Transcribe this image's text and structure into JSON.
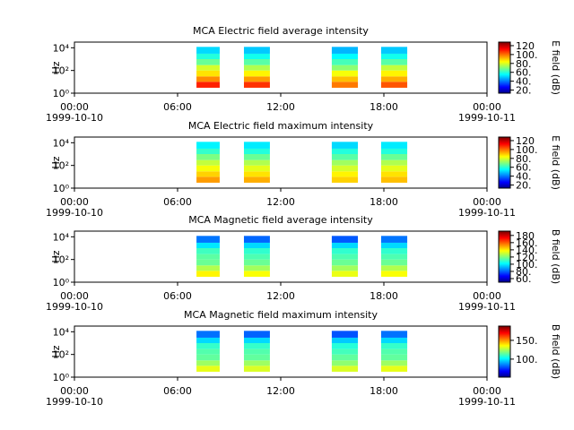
{
  "chart_data": [
    {
      "type": "spectrogram",
      "title": "MCA  Electric field average intensity",
      "ylabel": "Hz",
      "clabel": "E field (dB)",
      "colormap": "jet",
      "log_y": true,
      "ylim": [
        1,
        31623
      ],
      "yticks": [
        {
          "value": 1,
          "label": "10⁰"
        },
        {
          "value": 100,
          "label": "10²"
        },
        {
          "value": 10000,
          "label": "10⁴"
        }
      ],
      "xlim": [
        0,
        24
      ],
      "xticks": [
        {
          "value": 0,
          "label": "00:00"
        },
        {
          "value": 6,
          "label": "06:00"
        },
        {
          "value": 12,
          "label": "12:00"
        },
        {
          "value": 18,
          "label": "18:00"
        },
        {
          "value": 24,
          "label": "00:00"
        }
      ],
      "start_date": "1999-10-10",
      "end_date": "1999-10-11",
      "clim": [
        13,
        128
      ],
      "cticks": [
        {
          "value": 20,
          "label": "20."
        },
        {
          "value": 40,
          "label": "40."
        },
        {
          "value": 60,
          "label": "60."
        },
        {
          "value": 80,
          "label": "80."
        },
        {
          "value": 100,
          "label": "100."
        },
        {
          "value": 120,
          "label": "120"
        }
      ],
      "segments": [
        [
          7.1,
          8.45
        ],
        [
          9.86,
          11.37
        ],
        [
          14.97,
          16.49
        ],
        [
          17.84,
          19.36
        ]
      ],
      "freq_edges": [
        3,
        10,
        30,
        100,
        300,
        1000,
        3000,
        12000
      ],
      "values": [
        [
          110,
          98,
          88,
          80,
          68,
          60,
          52
        ],
        [
          108,
          96,
          86,
          76,
          66,
          58,
          50
        ],
        [
          100,
          92,
          84,
          72,
          64,
          56,
          48
        ],
        [
          104,
          94,
          86,
          78,
          66,
          58,
          50
        ]
      ]
    },
    {
      "type": "spectrogram",
      "title": "MCA  Electric field maximum intensity",
      "ylabel": "Hz",
      "clabel": "E field (dB)",
      "colormap": "jet",
      "log_y": true,
      "ylim": [
        1,
        31623
      ],
      "yticks": [
        {
          "value": 1,
          "label": "10⁰"
        },
        {
          "value": 100,
          "label": "10²"
        },
        {
          "value": 10000,
          "label": "10⁴"
        }
      ],
      "xlim": [
        0,
        24
      ],
      "xticks": [
        {
          "value": 0,
          "label": "00:00"
        },
        {
          "value": 6,
          "label": "06:00"
        },
        {
          "value": 12,
          "label": "12:00"
        },
        {
          "value": 18,
          "label": "18:00"
        },
        {
          "value": 24,
          "label": "00:00"
        }
      ],
      "start_date": "1999-10-10",
      "end_date": "1999-10-11",
      "clim": [
        13,
        128
      ],
      "cticks": [
        {
          "value": 20,
          "label": "20."
        },
        {
          "value": 40,
          "label": "40."
        },
        {
          "value": 60,
          "label": "60."
        },
        {
          "value": 80,
          "label": "80."
        },
        {
          "value": 100,
          "label": "100."
        },
        {
          "value": 120,
          "label": "120"
        }
      ],
      "segments": [
        [
          7.1,
          8.45
        ],
        [
          9.86,
          11.37
        ],
        [
          14.97,
          16.49
        ],
        [
          17.84,
          19.36
        ]
      ],
      "freq_edges": [
        3,
        10,
        30,
        100,
        300,
        1000,
        3000,
        12000
      ],
      "values": [
        [
          96,
          90,
          84,
          78,
          70,
          62,
          55
        ],
        [
          94,
          88,
          82,
          76,
          68,
          60,
          54
        ],
        [
          90,
          86,
          80,
          74,
          66,
          60,
          52
        ],
        [
          92,
          88,
          82,
          76,
          68,
          60,
          54
        ]
      ]
    },
    {
      "type": "spectrogram",
      "title": "MCA  Magnetic field average intensity",
      "ylabel": "Hz",
      "clabel": "B field (dB)",
      "colormap": "jet",
      "log_y": true,
      "ylim": [
        1,
        31623
      ],
      "yticks": [
        {
          "value": 1,
          "label": "10⁰"
        },
        {
          "value": 100,
          "label": "10²"
        },
        {
          "value": 10000,
          "label": "10⁴"
        }
      ],
      "xlim": [
        0,
        24
      ],
      "xticks": [
        {
          "value": 0,
          "label": "00:00"
        },
        {
          "value": 6,
          "label": "06:00"
        },
        {
          "value": 12,
          "label": "12:00"
        },
        {
          "value": 18,
          "label": "18:00"
        },
        {
          "value": 24,
          "label": "00:00"
        }
      ],
      "start_date": "1999-10-10",
      "end_date": "1999-10-11",
      "clim": [
        50,
        192
      ],
      "cticks": [
        {
          "value": 60,
          "label": "60."
        },
        {
          "value": 80,
          "label": "80."
        },
        {
          "value": 100,
          "label": "100."
        },
        {
          "value": 120,
          "label": "120."
        },
        {
          "value": 140,
          "label": "140."
        },
        {
          "value": 160,
          "label": "160."
        },
        {
          "value": 180,
          "label": "180"
        }
      ],
      "segments": [
        [
          7.1,
          8.45
        ],
        [
          9.86,
          11.37
        ],
        [
          14.97,
          16.49
        ],
        [
          17.84,
          19.36
        ]
      ],
      "freq_edges": [
        3,
        10,
        30,
        100,
        300,
        1000,
        3000,
        12000
      ],
      "values": [
        [
          140,
          128,
          118,
          116,
          112,
          100,
          84
        ],
        [
          138,
          126,
          118,
          114,
          110,
          98,
          82
        ],
        [
          136,
          126,
          118,
          114,
          110,
          98,
          80
        ],
        [
          138,
          128,
          118,
          114,
          110,
          98,
          84
        ]
      ]
    },
    {
      "type": "spectrogram",
      "title": "MCA  Magnetic field maximum intensity",
      "ylabel": "Hz",
      "clabel": "B field (dB)",
      "colormap": "jet",
      "log_y": true,
      "ylim": [
        1,
        31623
      ],
      "yticks": [
        {
          "value": 1,
          "label": "10⁰"
        },
        {
          "value": 100,
          "label": "10²"
        },
        {
          "value": 10000,
          "label": "10⁴"
        }
      ],
      "xlim": [
        0,
        24
      ],
      "xticks": [
        {
          "value": 0,
          "label": "00:00"
        },
        {
          "value": 6,
          "label": "06:00"
        },
        {
          "value": 12,
          "label": "12:00"
        },
        {
          "value": 18,
          "label": "18:00"
        },
        {
          "value": 24,
          "label": "00:00"
        }
      ],
      "start_date": "1999-10-10",
      "end_date": "1999-10-11",
      "clim": [
        52,
        188
      ],
      "cticks": [
        {
          "value": 100,
          "label": "100."
        },
        {
          "value": 150,
          "label": "150."
        }
      ],
      "segments": [
        [
          7.1,
          8.45
        ],
        [
          9.86,
          11.37
        ],
        [
          14.97,
          16.49
        ],
        [
          17.84,
          19.36
        ]
      ],
      "freq_edges": [
        3,
        10,
        30,
        100,
        300,
        1000,
        3000,
        12000
      ],
      "values": [
        [
          134,
          124,
          116,
          114,
          110,
          98,
          84
        ],
        [
          132,
          124,
          116,
          114,
          110,
          98,
          82
        ],
        [
          132,
          122,
          116,
          112,
          108,
          96,
          80
        ],
        [
          134,
          124,
          116,
          114,
          110,
          98,
          84
        ]
      ]
    }
  ]
}
